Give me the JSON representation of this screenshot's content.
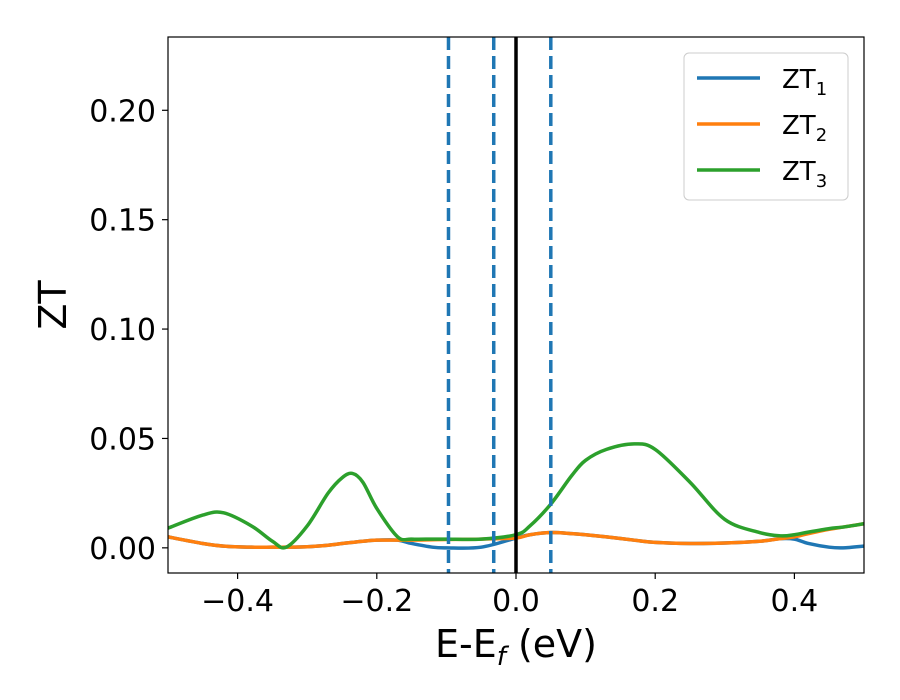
{
  "chart_data": {
    "type": "line",
    "title": "",
    "xlabel_main": "E-E",
    "xlabel_sub": "f",
    "xlabel_unit": " (eV)",
    "ylabel": "ZT",
    "xlim": [
      -0.5,
      0.5
    ],
    "ylim": [
      -0.0115,
      0.2335
    ],
    "x_ticks": [
      -0.4,
      -0.2,
      0.0,
      0.2,
      0.4
    ],
    "x_tick_labels": [
      "−0.4",
      "−0.2",
      "0.0",
      "0.2",
      "0.4"
    ],
    "y_ticks": [
      0.0,
      0.05,
      0.1,
      0.15,
      0.2
    ],
    "y_tick_labels": [
      "0.00",
      "0.05",
      "0.10",
      "0.15",
      "0.20"
    ],
    "grid": false,
    "legend_position": "top-right",
    "vertical_lines": [
      {
        "x": -0.097,
        "style": "dashed",
        "color": "#1f77b4"
      },
      {
        "x": -0.032,
        "style": "dashed",
        "color": "#1f77b4"
      },
      {
        "x": 0.0,
        "style": "solid",
        "color": "#000000"
      },
      {
        "x": 0.05,
        "style": "dashed",
        "color": "#1f77b4"
      }
    ],
    "x": [
      -0.5,
      -0.45,
      -0.42,
      -0.38,
      -0.35,
      -0.33,
      -0.3,
      -0.27,
      -0.25,
      -0.235,
      -0.22,
      -0.2,
      -0.17,
      -0.15,
      -0.12,
      -0.1,
      -0.05,
      0.0,
      0.02,
      0.05,
      0.08,
      0.1,
      0.13,
      0.17,
      0.2,
      0.25,
      0.3,
      0.35,
      0.38,
      0.4,
      0.42,
      0.45,
      0.47,
      0.5
    ],
    "series": [
      {
        "name_main": "ZT",
        "name_sub": "1",
        "color": "#1f77b4",
        "values": [
          0.005,
          0.002,
          0.0008,
          0.0003,
          0.0003,
          0.0003,
          0.0005,
          0.0012,
          0.002,
          0.0025,
          0.003,
          0.0035,
          0.0035,
          0.002,
          0.0003,
          0.0,
          0.0003,
          0.0045,
          0.006,
          0.007,
          0.0065,
          0.006,
          0.005,
          0.0035,
          0.0025,
          0.002,
          0.0022,
          0.003,
          0.0042,
          0.004,
          0.002,
          0.0003,
          0.0,
          0.0008
        ]
      },
      {
        "name_main": "ZT",
        "name_sub": "2",
        "color": "#ff7f0e",
        "values": [
          0.005,
          0.002,
          0.0008,
          0.0003,
          0.0003,
          0.0003,
          0.0005,
          0.0012,
          0.002,
          0.0025,
          0.003,
          0.0035,
          0.0035,
          0.0035,
          0.0037,
          0.0038,
          0.004,
          0.0045,
          0.006,
          0.007,
          0.0065,
          0.006,
          0.005,
          0.0035,
          0.0025,
          0.002,
          0.0022,
          0.003,
          0.0042,
          0.005,
          0.0065,
          0.0085,
          0.0095,
          0.011
        ]
      },
      {
        "name_main": "ZT",
        "name_sub": "3",
        "color": "#2ca02c",
        "values": [
          0.009,
          0.015,
          0.016,
          0.01,
          0.003,
          0.0003,
          0.01,
          0.025,
          0.032,
          0.034,
          0.03,
          0.018,
          0.005,
          0.004,
          0.004,
          0.004,
          0.004,
          0.006,
          0.01,
          0.02,
          0.033,
          0.04,
          0.045,
          0.0475,
          0.045,
          0.03,
          0.013,
          0.007,
          0.0055,
          0.006,
          0.0072,
          0.0088,
          0.0095,
          0.011
        ]
      }
    ]
  }
}
